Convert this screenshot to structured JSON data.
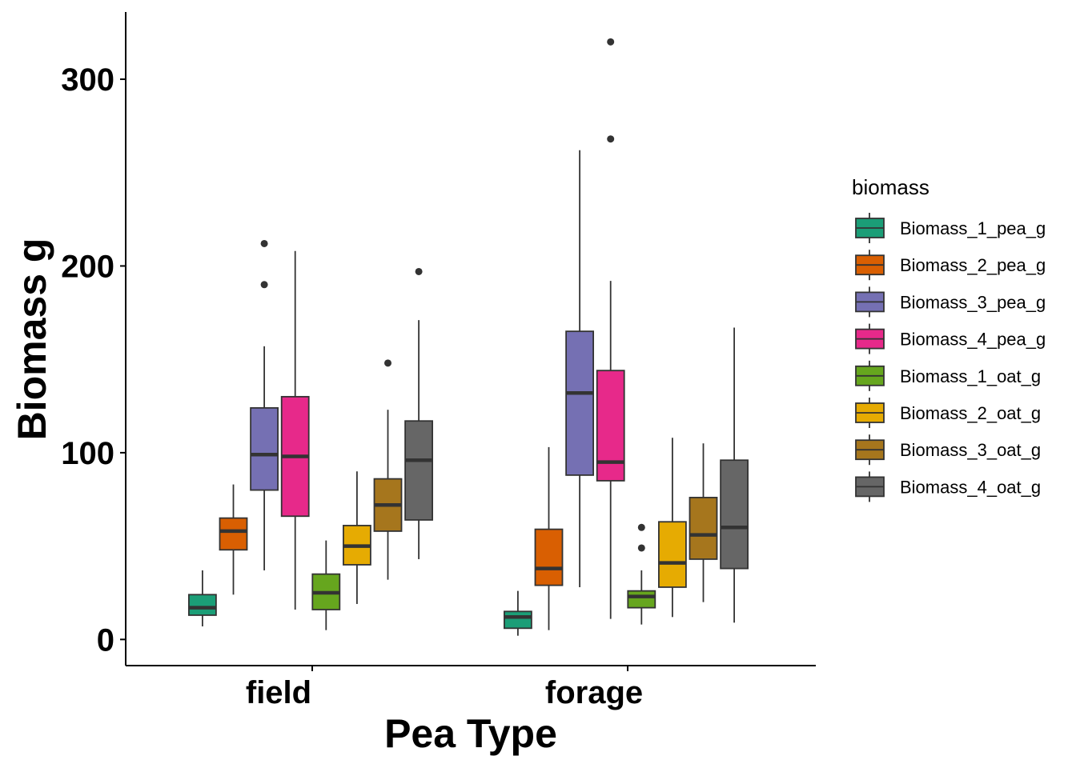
{
  "chart_data": {
    "type": "boxplot",
    "xlabel": "Pea Type",
    "ylabel": "Biomass g",
    "ylim": [
      -14,
      336
    ],
    "yticks": [
      0,
      100,
      200,
      300
    ],
    "categories": [
      "field",
      "forage"
    ],
    "legend": {
      "title": "biomass",
      "position": "right"
    },
    "grid": false,
    "series": [
      {
        "name": "Biomass_1_pea_g",
        "color": "#1B9E77",
        "boxes": [
          {
            "whisker_low": 7,
            "q1": 13,
            "median": 17,
            "q3": 24,
            "whisker_high": 37,
            "outliers": []
          },
          {
            "whisker_low": 2,
            "q1": 6,
            "median": 12,
            "q3": 15,
            "whisker_high": 26,
            "outliers": []
          }
        ]
      },
      {
        "name": "Biomass_2_pea_g",
        "color": "#D95F02",
        "boxes": [
          {
            "whisker_low": 24,
            "q1": 48,
            "median": 58,
            "q3": 65,
            "whisker_high": 83,
            "outliers": []
          },
          {
            "whisker_low": 5,
            "q1": 29,
            "median": 38,
            "q3": 59,
            "whisker_high": 103,
            "outliers": []
          }
        ]
      },
      {
        "name": "Biomass_3_pea_g",
        "color": "#7570B3",
        "boxes": [
          {
            "whisker_low": 37,
            "q1": 80,
            "median": 99,
            "q3": 124,
            "whisker_high": 157,
            "outliers": [
              212,
              190
            ]
          },
          {
            "whisker_low": 28,
            "q1": 88,
            "median": 132,
            "q3": 165,
            "whisker_high": 262,
            "outliers": []
          }
        ]
      },
      {
        "name": "Biomass_4_pea_g",
        "color": "#E7298A",
        "boxes": [
          {
            "whisker_low": 16,
            "q1": 66,
            "median": 98,
            "q3": 130,
            "whisker_high": 208,
            "outliers": []
          },
          {
            "whisker_low": 11,
            "q1": 85,
            "median": 95,
            "q3": 144,
            "whisker_high": 192,
            "outliers": [
              320,
              268
            ]
          }
        ]
      },
      {
        "name": "Biomass_1_oat_g",
        "color": "#66A61E",
        "boxes": [
          {
            "whisker_low": 5,
            "q1": 16,
            "median": 25,
            "q3": 35,
            "whisker_high": 53,
            "outliers": []
          },
          {
            "whisker_low": 8,
            "q1": 17,
            "median": 23,
            "q3": 26,
            "whisker_high": 37,
            "outliers": [
              60,
              49
            ]
          }
        ]
      },
      {
        "name": "Biomass_2_oat_g",
        "color": "#E6AB02",
        "boxes": [
          {
            "whisker_low": 19,
            "q1": 40,
            "median": 50,
            "q3": 61,
            "whisker_high": 90,
            "outliers": []
          },
          {
            "whisker_low": 12,
            "q1": 28,
            "median": 41,
            "q3": 63,
            "whisker_high": 108,
            "outliers": []
          }
        ]
      },
      {
        "name": "Biomass_3_oat_g",
        "color": "#A6761D",
        "boxes": [
          {
            "whisker_low": 32,
            "q1": 58,
            "median": 72,
            "q3": 86,
            "whisker_high": 123,
            "outliers": [
              148
            ]
          },
          {
            "whisker_low": 20,
            "q1": 43,
            "median": 56,
            "q3": 76,
            "whisker_high": 105,
            "outliers": []
          }
        ]
      },
      {
        "name": "Biomass_4_oat_g",
        "color": "#666666",
        "boxes": [
          {
            "whisker_low": 43,
            "q1": 64,
            "median": 96,
            "q3": 117,
            "whisker_high": 171,
            "outliers": [
              197
            ]
          },
          {
            "whisker_low": 9,
            "q1": 38,
            "median": 60,
            "q3": 96,
            "whisker_high": 167,
            "outliers": []
          }
        ]
      }
    ]
  }
}
